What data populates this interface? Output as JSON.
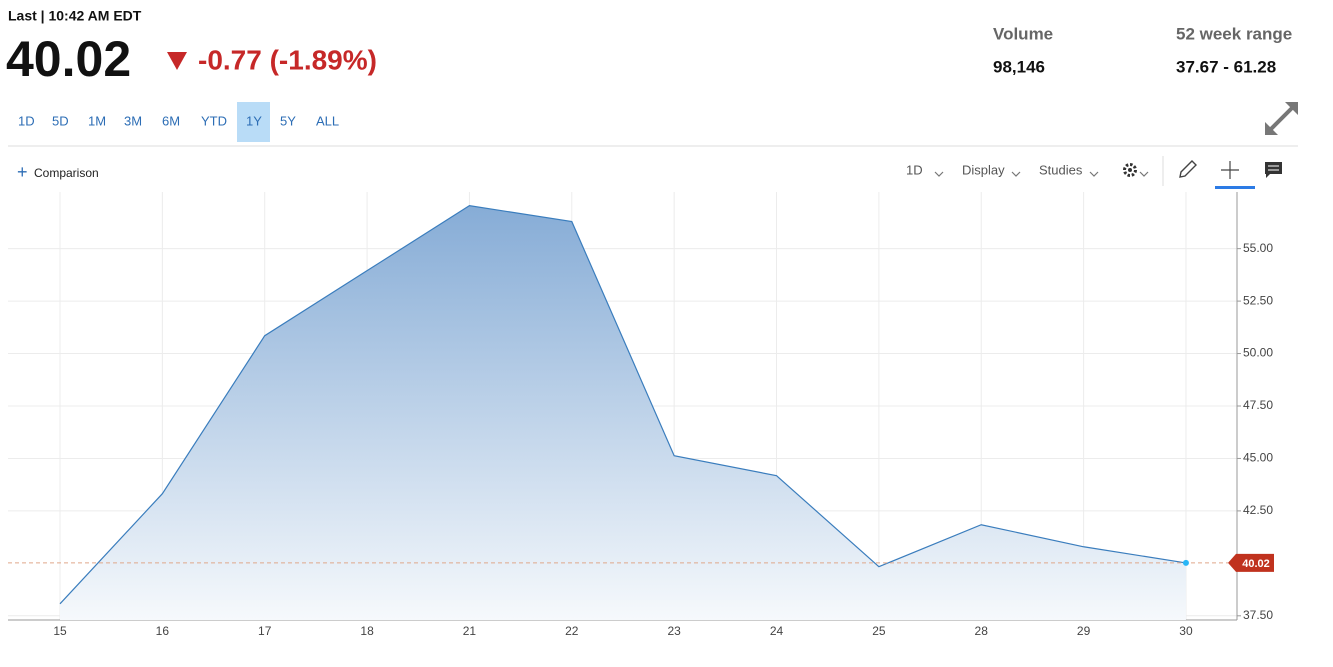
{
  "header": {
    "last": "Last | 10:42 AM EDT",
    "price": "40.02",
    "change": "-0.77 (-1.89%)",
    "volume_label": "Volume",
    "volume": "98,146",
    "range_label": "52 week range",
    "range": "37.67 - 61.28"
  },
  "ranges": [
    "1D",
    "5D",
    "1M",
    "3M",
    "6M",
    "YTD",
    "1Y",
    "5Y",
    "ALL"
  ],
  "toolbar": {
    "comparison": "Comparison",
    "interval": "1D",
    "display": "Display",
    "studies": "Studies"
  },
  "chart_data": {
    "type": "area",
    "categories": [
      "15",
      "16",
      "17",
      "18",
      "21",
      "22",
      "23",
      "24",
      "25",
      "28",
      "29",
      "30"
    ],
    "series": [
      {
        "color": "#3a7dbd",
        "values": [
          38.07,
          43.32,
          50.85,
          53.95,
          57.05,
          56.29,
          45.13,
          44.18,
          39.84,
          41.84,
          40.79,
          40.02
        ]
      }
    ],
    "ylim": [
      37.3,
      57.7
    ],
    "yticks": [
      {
        "value": 37.5,
        "label": "37.50"
      },
      {
        "value": 42.5,
        "label": "42.50"
      },
      {
        "value": 45,
        "label": "45.00"
      },
      {
        "value": 47.5,
        "label": "47.50"
      },
      {
        "value": 50,
        "label": "50.00"
      },
      {
        "value": 52.5,
        "label": "52.50"
      },
      {
        "value": 55,
        "label": "55.00"
      }
    ],
    "grid": true
  }
}
